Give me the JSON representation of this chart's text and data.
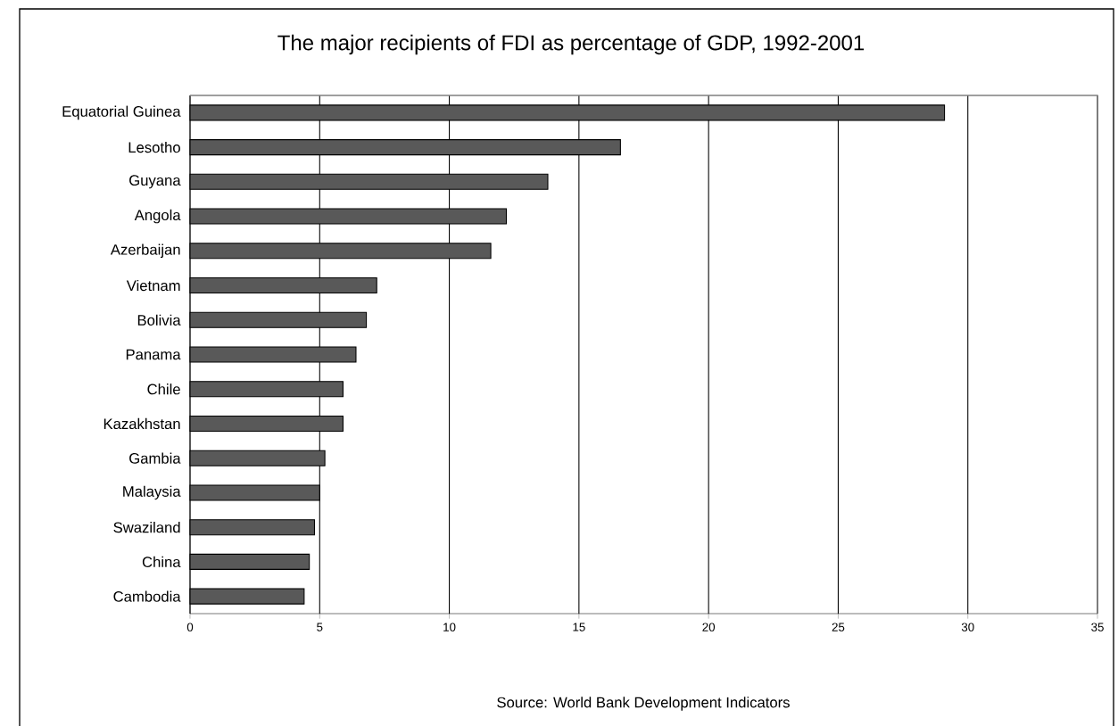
{
  "chart_data": {
    "type": "bar",
    "orientation": "horizontal",
    "title": "The major recipients of FDI as percentage of GDP, 1992-2001",
    "categories": [
      "Equatorial Guinea",
      "Lesotho",
      "Guyana",
      "Angola",
      "Azerbaijan",
      "Vietnam",
      "Bolivia",
      "Panama",
      "Chile",
      "Kazakhstan",
      "Gambia",
      "Malaysia",
      "Swaziland",
      "China",
      "Cambodia"
    ],
    "values": [
      29.1,
      16.6,
      13.8,
      12.2,
      11.6,
      7.2,
      6.8,
      6.4,
      5.9,
      5.9,
      5.2,
      5.0,
      4.8,
      4.6,
      4.4
    ],
    "color": "#595959",
    "xlim": [
      0,
      35
    ],
    "xticks": [
      0,
      5,
      10,
      15,
      20,
      25,
      30,
      35
    ],
    "grid": "x",
    "annotations": [
      "Source: World Bank Development Indicators"
    ]
  }
}
